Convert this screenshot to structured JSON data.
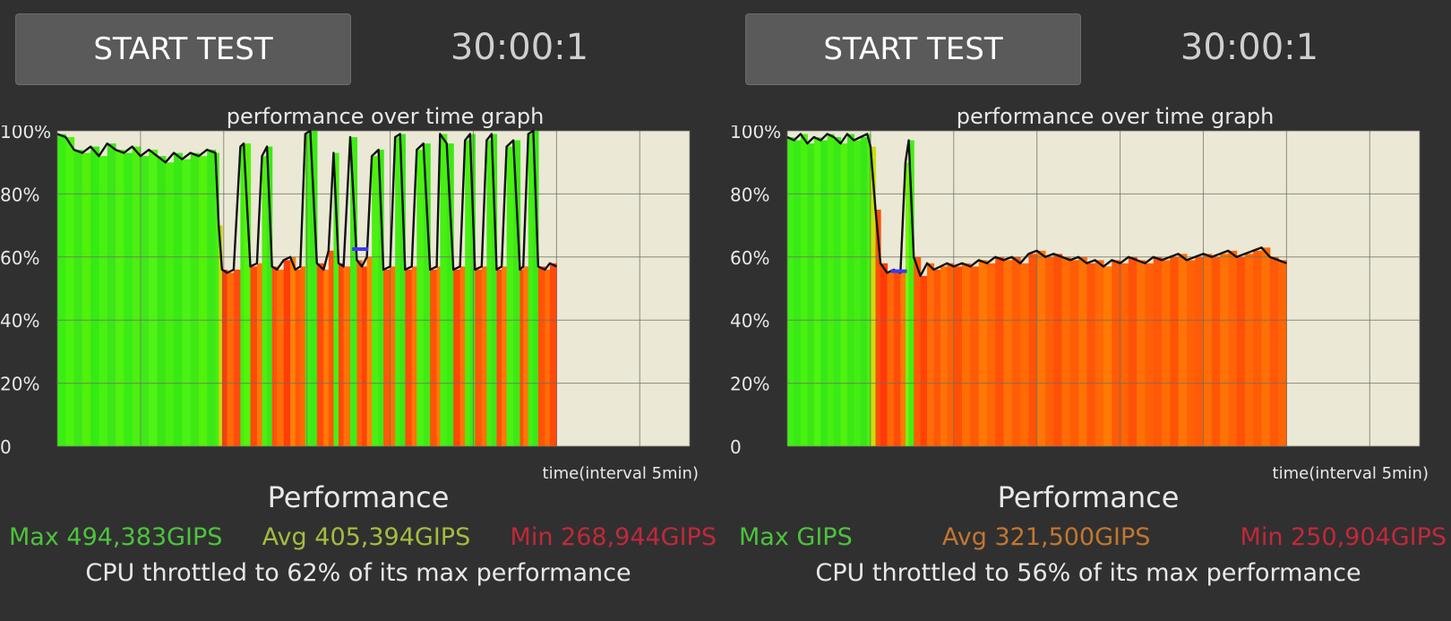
{
  "panels": [
    {
      "start_button": "START TEST",
      "timer": "30:00:1",
      "graph_title": "performance over time graph",
      "time_axis_label": "time(interval 5min)",
      "performance_title": "Performance",
      "stats": {
        "max": "Max 494,383GIPS",
        "avg": "Avg 405,394GIPS",
        "min": "Min 268,944GIPS"
      },
      "stat_colors": {
        "max": "#4cc43c",
        "avg": "#a3bd3f",
        "min": "#c0293a"
      },
      "throttle_text": "CPU throttled to 62% of its max performance",
      "chart_data": {
        "type": "area",
        "y_tick_labels": [
          "100%",
          "80%",
          "60%",
          "40%",
          "20%",
          "0"
        ],
        "xlabel": "time(interval 5min)",
        "ylim": [
          0,
          100
        ],
        "x_range_min": [
          0,
          38
        ],
        "data_end_min": 30,
        "grid": true,
        "avg_marker": {
          "x": 18.2,
          "y": 62.5
        },
        "x": [
          0,
          0.5,
          1,
          1.5,
          2,
          2.5,
          3,
          3.5,
          4,
          4.5,
          5,
          5.5,
          6,
          6.5,
          7,
          7.5,
          8,
          8.5,
          9,
          9.5,
          9.7,
          9.9,
          10.2,
          10.6,
          11,
          11.2,
          11.6,
          12,
          12.3,
          12.6,
          12.9,
          13.2,
          13.6,
          14,
          14.3,
          14.6,
          14.9,
          15.2,
          15.6,
          16,
          16.3,
          16.6,
          16.9,
          17.2,
          17.6,
          18,
          18.3,
          18.6,
          18.9,
          19.3,
          19.6,
          20,
          20.3,
          20.6,
          20.9,
          21.3,
          21.6,
          22,
          22.4,
          22.8,
          23,
          23.4,
          23.8,
          24.2,
          24.5,
          24.8,
          25.1,
          25.5,
          25.8,
          26.1,
          26.4,
          26.7,
          27,
          27.4,
          27.8,
          28,
          28.3,
          28.6,
          28.9,
          29.3,
          29.6,
          30
        ],
        "values": [
          99,
          98,
          94,
          93,
          95,
          92,
          96,
          94,
          93,
          95,
          92,
          94,
          92,
          90,
          93,
          91,
          93,
          92,
          94,
          93,
          70,
          56,
          55,
          56,
          95,
          96,
          57,
          58,
          92,
          95,
          57,
          56,
          59,
          60,
          56,
          57,
          99,
          100,
          58,
          56,
          62,
          93,
          58,
          57,
          98,
          59,
          57,
          60,
          92,
          94,
          56,
          57,
          98,
          99,
          56,
          57,
          94,
          96,
          56,
          57,
          99,
          96,
          56,
          57,
          97,
          99,
          56,
          57,
          97,
          99,
          56,
          57,
          95,
          97,
          56,
          57,
          99,
          100,
          57,
          56,
          58,
          57
        ],
        "band_colors": [
          "#39ee12",
          "#4af40c",
          "#3ee818",
          "#52f00a",
          "#36ea14",
          "#46f210",
          "#3ce61a",
          "#50f20e",
          "#38ec16",
          "#4cf012",
          "#42e818",
          "#4ef414",
          "#3ae614",
          "#48ee10",
          "#36ea12",
          "#4af216",
          "#40e814",
          "#52f20c",
          "#3ce816",
          "#46ee12",
          "#c8d80e",
          "#ff3c08",
          "#ff6a06",
          "#ff4c10",
          "#44ec14",
          "#52f40c",
          "#ff4a0a",
          "#ff7806",
          "#4eee12",
          "#3ce816",
          "#ff520c",
          "#ff6e06",
          "#ff3e0a",
          "#ff8006",
          "#ff5a08",
          "#ff6a04",
          "#46f014",
          "#3aea16",
          "#ff4c0a",
          "#ff7a06",
          "#ff5606",
          "#4af012",
          "#ff4a0a",
          "#ff7206",
          "#40ec16",
          "#ff6008",
          "#ff4408",
          "#ff8406",
          "#4cf012",
          "#3ee816",
          "#ff5a08",
          "#ff7006",
          "#46ee14",
          "#3ae816",
          "#ff4e0a",
          "#ff7606",
          "#4cf212",
          "#40ea14",
          "#ff520a",
          "#ff7806",
          "#46f012",
          "#3cea14",
          "#ff4808",
          "#ff7406",
          "#4af012",
          "#3ee816",
          "#ff5808",
          "#ff7206",
          "#48ee12",
          "#3ee814",
          "#ff4e0a",
          "#ff7a06",
          "#4af214",
          "#40e816",
          "#ff5008",
          "#ff7806",
          "#44ee14",
          "#3ae816",
          "#ff5408",
          "#ff6c06",
          "#ff4a0a",
          "#ff7606"
        ]
      }
    },
    {
      "start_button": "START TEST",
      "timer": "30:00:1",
      "graph_title": "performance over time graph",
      "time_axis_label": "time(interval 5min)",
      "performance_title": "Performance",
      "stats": {
        "max": "Max GIPS",
        "avg": "Avg 321,500GIPS",
        "min": "Min 250,904GIPS"
      },
      "stat_colors": {
        "max": "#4cc43c",
        "avg": "#c2762f",
        "min": "#c0293a"
      },
      "throttle_text": "CPU throttled to 56% of its max performance",
      "chart_data": {
        "type": "area",
        "y_tick_labels": [
          "100%",
          "80%",
          "60%",
          "40%",
          "20%",
          "0"
        ],
        "xlabel": "time(interval 5min)",
        "ylim": [
          0,
          100
        ],
        "x_range_min": [
          0,
          38
        ],
        "data_end_min": 30,
        "grid": true,
        "avg_marker": {
          "x": 6.7,
          "y": 55.5
        },
        "x": [
          0,
          0.4,
          0.8,
          1.2,
          1.6,
          2,
          2.4,
          2.8,
          3.2,
          3.6,
          4,
          4.4,
          4.8,
          5,
          5.3,
          5.6,
          6,
          6.4,
          6.8,
          7.1,
          7.3,
          7.6,
          8,
          8.4,
          8.8,
          9.2,
          9.6,
          10,
          10.5,
          11,
          11.5,
          12,
          12.5,
          13,
          13.5,
          14,
          14.5,
          15,
          15.5,
          16,
          16.5,
          17,
          17.5,
          18,
          18.5,
          19,
          19.5,
          20,
          20.5,
          21,
          21.5,
          22,
          22.5,
          23,
          23.5,
          24,
          24.5,
          25,
          25.5,
          26,
          26.5,
          27,
          27.5,
          28,
          28.5,
          29,
          29.5,
          30
        ],
        "values": [
          98,
          97,
          99,
          96,
          98,
          97,
          99,
          98,
          96,
          99,
          97,
          98,
          99,
          95,
          75,
          58,
          55,
          56,
          55,
          90,
          97,
          60,
          54,
          58,
          56,
          57,
          58,
          57,
          58,
          57,
          59,
          58,
          60,
          59,
          60,
          58,
          61,
          62,
          60,
          61,
          60,
          59,
          60,
          58,
          59,
          57,
          59,
          58,
          60,
          59,
          58,
          60,
          59,
          60,
          61,
          59,
          60,
          61,
          60,
          61,
          62,
          60,
          61,
          62,
          63,
          60,
          59,
          58
        ],
        "band_colors": [
          "#40f014",
          "#38ea16",
          "#48f210",
          "#3ee614",
          "#4cf412",
          "#36e818",
          "#46ee12",
          "#3aea16",
          "#50f20e",
          "#3ce814",
          "#44ee12",
          "#3ae618",
          "#4af010",
          "#c8e00c",
          "#ff5008",
          "#ff3a0a",
          "#ff6806",
          "#ff4c08",
          "#ff7a06",
          "#7cf010",
          "#44ee12",
          "#ff5a06",
          "#ff4408",
          "#ff6c06",
          "#ff5808",
          "#ff7206",
          "#ff6206",
          "#ff5006",
          "#ff6e04",
          "#ff5a08",
          "#ff7806",
          "#ff6604",
          "#ff5208",
          "#ff7006",
          "#ff5e06",
          "#ff6a04",
          "#ff5408",
          "#ff7606",
          "#ff6006",
          "#ff5008",
          "#ff6c06",
          "#ff5c06",
          "#ff7206",
          "#ff5608",
          "#ff6806",
          "#ff7a04",
          "#ff5a08",
          "#ff6406",
          "#ff5208",
          "#ff7006",
          "#ff6006",
          "#ff5808",
          "#ff6c04",
          "#ff5406",
          "#ff7406",
          "#ff6206",
          "#ff5a08",
          "#ff6e06",
          "#ff5606",
          "#ff7206",
          "#ff6406",
          "#ff5008",
          "#ff6a06",
          "#ff5c06",
          "#ff7006",
          "#ff5808",
          "#ff6606",
          "#ff5408"
        ]
      }
    }
  ]
}
